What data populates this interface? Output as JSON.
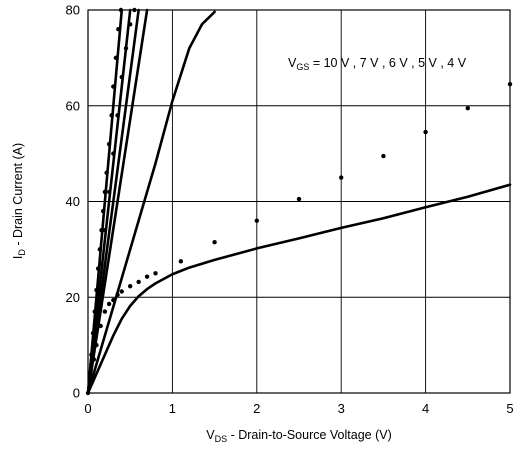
{
  "chart_data": {
    "type": "line",
    "xlabel_main": "V",
    "xlabel_sub": "DS",
    "xlabel_rest": " - Drain-to-Source Voltage (V)",
    "ylabel_main": "I",
    "ylabel_sub": "D",
    "ylabel_rest": " - Drain Current (A)",
    "annotation_main": "V",
    "annotation_sub": "GS",
    "annotation_rest": " = 10 V , 7 V , 6 V , 5 V , 4 V",
    "xlim": [
      0,
      5
    ],
    "ylim": [
      0,
      80
    ],
    "x_ticks": [
      "0",
      "1",
      "2",
      "3",
      "4",
      "5"
    ],
    "y_ticks": [
      "0",
      "20",
      "40",
      "60",
      "80"
    ],
    "grid": true,
    "series": [
      {
        "style": "solid",
        "points": [
          [
            0,
            0
          ],
          [
            0.1,
            4
          ],
          [
            0.2,
            8
          ],
          [
            0.3,
            12
          ],
          [
            0.4,
            15.5
          ],
          [
            0.5,
            18.2
          ],
          [
            0.6,
            20.2
          ],
          [
            0.7,
            21.7
          ],
          [
            0.8,
            22.9
          ],
          [
            1.0,
            24.8
          ],
          [
            1.2,
            26.2
          ],
          [
            1.5,
            27.8
          ],
          [
            2.0,
            30.2
          ],
          [
            2.5,
            32.3
          ],
          [
            3.0,
            34.5
          ],
          [
            3.5,
            36.5
          ],
          [
            4.0,
            38.8
          ],
          [
            4.5,
            41.0
          ],
          [
            5.0,
            43.5
          ]
        ]
      },
      {
        "style": "solid",
        "points": [
          [
            0,
            0
          ],
          [
            0.2,
            12
          ],
          [
            0.4,
            24
          ],
          [
            0.6,
            36
          ],
          [
            0.8,
            48
          ],
          [
            1.0,
            61
          ],
          [
            1.2,
            72
          ],
          [
            1.35,
            77
          ],
          [
            1.5,
            79.6
          ]
        ]
      },
      {
        "style": "solid",
        "points": [
          [
            0,
            0
          ],
          [
            0.7,
            80
          ]
        ]
      },
      {
        "style": "solid",
        "points": [
          [
            0,
            0
          ],
          [
            0.6,
            80
          ]
        ]
      },
      {
        "style": "solid",
        "points": [
          [
            0,
            0
          ],
          [
            0.5,
            80
          ]
        ]
      },
      {
        "style": "solid",
        "points": [
          [
            0,
            0
          ],
          [
            0.4,
            80
          ]
        ]
      },
      {
        "style": "dotted",
        "points": [
          [
            0,
            0
          ],
          [
            0.02,
            4
          ],
          [
            0.04,
            8
          ],
          [
            0.06,
            12.5
          ],
          [
            0.08,
            17
          ],
          [
            0.1,
            21.5
          ],
          [
            0.12,
            26
          ],
          [
            0.14,
            30
          ],
          [
            0.16,
            34
          ],
          [
            0.18,
            38
          ],
          [
            0.2,
            42
          ],
          [
            0.22,
            46
          ],
          [
            0.25,
            52
          ],
          [
            0.28,
            58
          ],
          [
            0.3,
            64
          ],
          [
            0.33,
            70
          ],
          [
            0.36,
            76
          ],
          [
            0.39,
            80
          ]
        ]
      },
      {
        "style": "dotted",
        "points": [
          [
            0.03,
            3
          ],
          [
            0.07,
            7
          ],
          [
            0.1,
            10
          ],
          [
            0.15,
            14
          ],
          [
            0.2,
            17
          ],
          [
            0.25,
            18.6
          ],
          [
            0.3,
            19.4
          ],
          [
            0.35,
            20.5
          ],
          [
            0.4,
            21.2
          ],
          [
            0.5,
            22.3
          ],
          [
            0.6,
            23.2
          ],
          [
            0.7,
            24.3
          ],
          [
            0.8,
            25
          ],
          [
            1.1,
            27.5
          ],
          [
            1.5,
            31.5
          ],
          [
            2.0,
            36
          ],
          [
            2.5,
            40.5
          ],
          [
            3.0,
            45
          ],
          [
            3.5,
            49.5
          ],
          [
            4.0,
            54.5
          ],
          [
            4.5,
            59.5
          ],
          [
            5.0,
            64.5
          ]
        ]
      },
      {
        "style": "dotted",
        "points": [
          [
            0.04,
            6
          ],
          [
            0.08,
            13
          ],
          [
            0.12,
            20
          ],
          [
            0.16,
            27
          ],
          [
            0.2,
            34
          ],
          [
            0.25,
            42
          ],
          [
            0.3,
            50
          ],
          [
            0.35,
            58
          ],
          [
            0.4,
            66
          ],
          [
            0.45,
            72
          ],
          [
            0.5,
            77
          ],
          [
            0.55,
            80
          ]
        ]
      }
    ]
  }
}
